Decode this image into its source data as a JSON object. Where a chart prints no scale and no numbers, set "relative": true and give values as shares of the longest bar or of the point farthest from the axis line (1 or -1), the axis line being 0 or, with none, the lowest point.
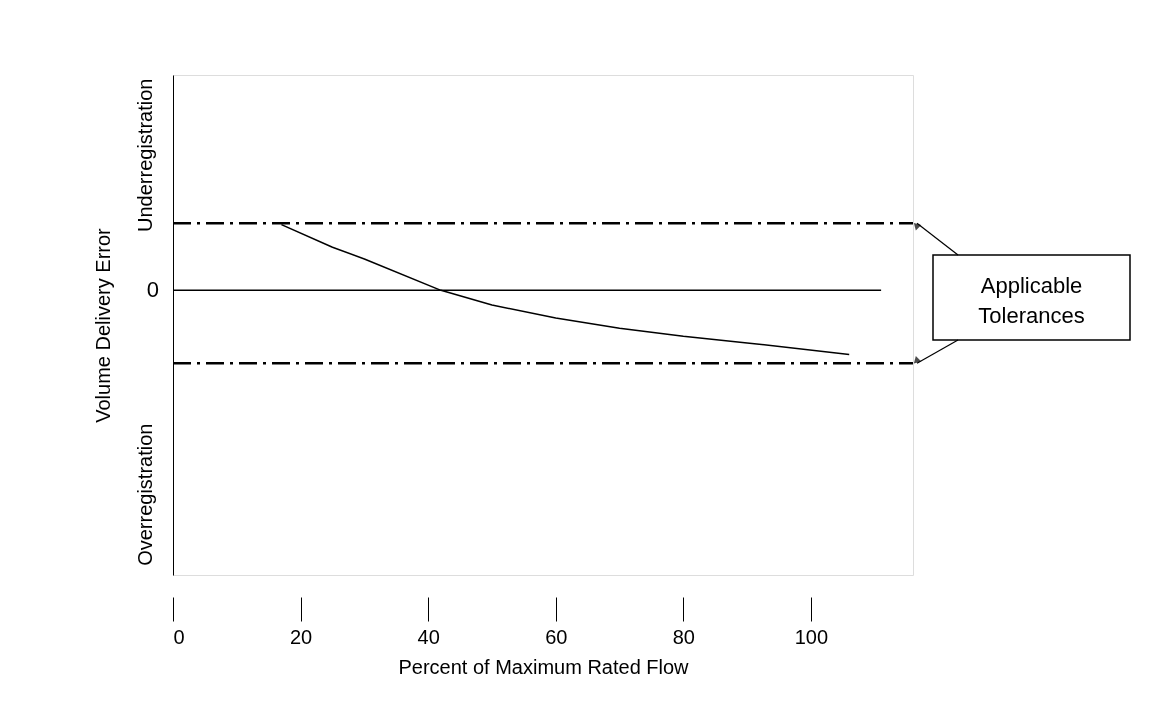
{
  "chart_data": {
    "type": "line",
    "relative": true,
    "xlabel": "Percent of Maximum Rated Flow",
    "ylabel": "Volume Delivery Error",
    "xlim": [
      0,
      116
    ],
    "xticks": [
      0,
      20,
      40,
      60,
      80,
      100
    ],
    "grid": false,
    "marker": "none",
    "line_style": "solid",
    "series": [
      {
        "color": "#000000",
        "x": [
          17,
          25,
          30,
          42,
          50,
          60,
          70,
          80,
          90,
          106
        ],
        "values": [
          0.9,
          0.59,
          0.43,
          0,
          -0.2,
          -0.38,
          -0.52,
          -0.63,
          -0.72,
          -0.88
        ]
      },
      {
        "color": "#000000",
        "x": [
          0,
          111
        ],
        "values": [
          0,
          0
        ]
      },
      {
        "color": "#000000",
        "x": [
          0,
          116
        ],
        "values": [
          0.92,
          0.92
        ],
        "line_style": "dashed"
      },
      {
        "color": "#000000",
        "x": [
          0,
          116
        ],
        "values": [
          -1,
          -1
        ],
        "line_style": "dashed"
      }
    ],
    "annotations": [
      "0",
      "Underregistration",
      "Overregistration",
      "Applicable Tolerances"
    ]
  }
}
